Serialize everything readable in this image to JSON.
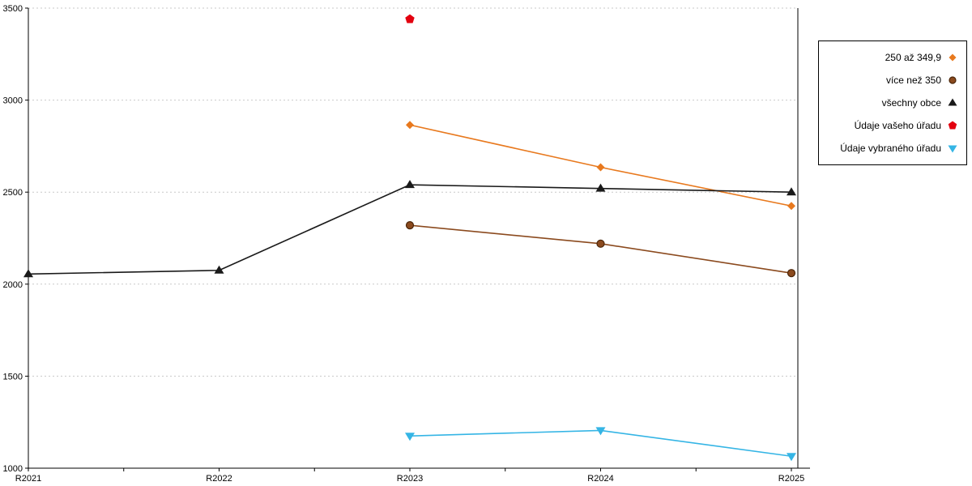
{
  "chart_data": {
    "type": "line",
    "categories": [
      "R2021",
      "R2022",
      "R2023",
      "R2024",
      "R2025"
    ],
    "ylim": [
      1000,
      3500
    ],
    "yticks": [
      1000,
      1500,
      2000,
      2500,
      3000,
      3500
    ],
    "grid": "horizontal-dotted",
    "legend_position": "outside-top-right",
    "axis_color": "#000000",
    "grid_color": "#c9c9c9",
    "series": [
      {
        "name": "250 až 349,9",
        "color": "#E8791E",
        "marker": "diamond",
        "values": [
          null,
          null,
          2865,
          2635,
          2425
        ]
      },
      {
        "name": "více než 350",
        "color": "#8B4A1E",
        "marker": "circle",
        "values": [
          null,
          null,
          2320,
          2220,
          2060
        ]
      },
      {
        "name": "všechny obce",
        "color": "#1A1A1A",
        "marker": "triangle-up",
        "values": [
          2055,
          2075,
          2540,
          2520,
          2500
        ]
      },
      {
        "name": "Údaje vašeho úřadu",
        "color": "#E3000F",
        "marker": "pentagon",
        "values": [
          null,
          null,
          3440,
          null,
          null
        ]
      },
      {
        "name": "Údaje vybraného úřadu",
        "color": "#35B5E5",
        "marker": "triangle-down",
        "values": [
          null,
          null,
          1175,
          1205,
          1065
        ]
      }
    ]
  }
}
